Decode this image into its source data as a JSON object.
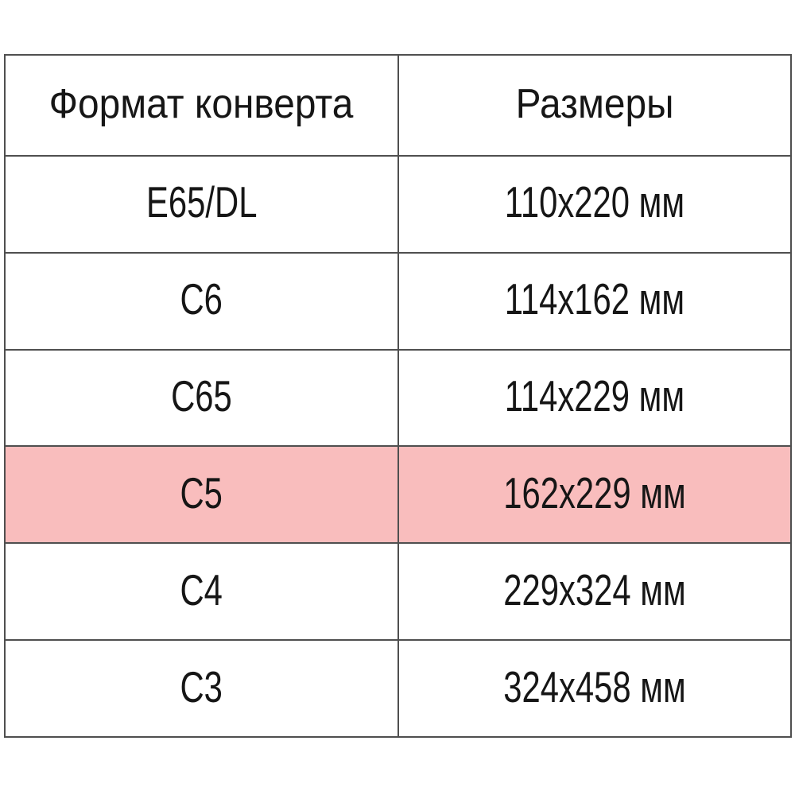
{
  "table": {
    "columns": [
      {
        "label": "Формат конверта"
      },
      {
        "label": "Размеры"
      }
    ],
    "rows": [
      {
        "format": "E65/DL",
        "size": "110x220 мм",
        "highlighted": false
      },
      {
        "format": "C6",
        "size": "114x162 мм",
        "highlighted": false
      },
      {
        "format": "C65",
        "size": "114x229 мм",
        "highlighted": false
      },
      {
        "format": "C5",
        "size": "162x229 мм",
        "highlighted": true
      },
      {
        "format": "C4",
        "size": "229x324 мм",
        "highlighted": false
      },
      {
        "format": "C3",
        "size": "324x458 мм",
        "highlighted": false
      }
    ],
    "colors": {
      "highlight": "#f9bdbd",
      "border": "#4f4f4f",
      "text": "#161616",
      "background": "#ffffff"
    }
  }
}
